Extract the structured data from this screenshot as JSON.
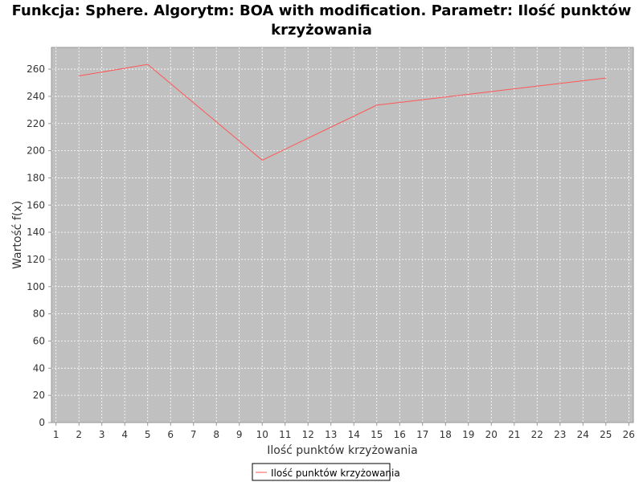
{
  "chart_data": {
    "type": "line",
    "title_line1": "Funkcja: Sphere. Algorytm: BOA with modification. Parametr: Ilość punktów",
    "title_line2": "krzyżowania",
    "xlabel": "Ilość punktów krzyżowania",
    "ylabel": "Wartość f(x)",
    "xlim": [
      0.8,
      26.2
    ],
    "ylim": [
      0,
      276
    ],
    "xticks": [
      1,
      2,
      3,
      4,
      5,
      6,
      7,
      8,
      9,
      10,
      11,
      12,
      13,
      14,
      15,
      16,
      17,
      18,
      19,
      20,
      21,
      22,
      23,
      24,
      25,
      26
    ],
    "yticks": [
      0,
      20,
      40,
      60,
      80,
      100,
      120,
      140,
      160,
      180,
      200,
      220,
      240,
      260
    ],
    "grid": true,
    "legend_position": "bottom-center",
    "colors": {
      "plot_background": "#c0c0c0",
      "grid": "#ffffff",
      "series": "#ff5555",
      "axis": "#999999"
    },
    "series": [
      {
        "name": "Ilość punktów krzyżowania",
        "x": [
          2,
          5,
          10,
          15,
          25
        ],
        "values": [
          255,
          263.5,
          193,
          233.5,
          253.5
        ]
      }
    ]
  }
}
